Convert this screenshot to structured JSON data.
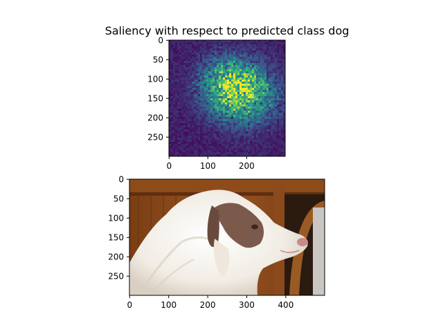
{
  "chart_data": [
    {
      "type": "heatmap",
      "title": "Saliency with respect to predicted class dog",
      "colormap": "viridis",
      "xlim": [
        0,
        299
      ],
      "ylim": [
        299,
        0
      ],
      "xticks": [
        0,
        100,
        200
      ],
      "yticks": [
        0,
        50,
        100,
        150,
        200,
        250
      ],
      "grid": false,
      "hotspots": [
        {
          "x": 140,
          "y": 90,
          "strength": 0.55
        },
        {
          "x": 185,
          "y": 125,
          "strength": 0.6
        },
        {
          "x": 215,
          "y": 100,
          "strength": 0.45
        },
        {
          "x": 150,
          "y": 160,
          "strength": 0.5
        },
        {
          "x": 255,
          "y": 155,
          "strength": 0.35
        },
        {
          "x": 110,
          "y": 120,
          "strength": 0.3
        },
        {
          "x": 200,
          "y": 190,
          "strength": 0.3
        }
      ]
    },
    {
      "type": "image",
      "xlim": [
        0,
        499
      ],
      "ylim": [
        299,
        0
      ],
      "xticks": [
        0,
        100,
        200,
        300,
        400
      ],
      "yticks": [
        0,
        50,
        100,
        150,
        200,
        250
      ],
      "grid": false,
      "colors": {
        "wood": "#8a4a1c",
        "wood_dark": "#5e2e10",
        "shadow": "#2a1a10",
        "fur_white": "#f4f0ea",
        "fur_brown": "#7b5a4c",
        "nose": "#c98a88"
      }
    }
  ]
}
